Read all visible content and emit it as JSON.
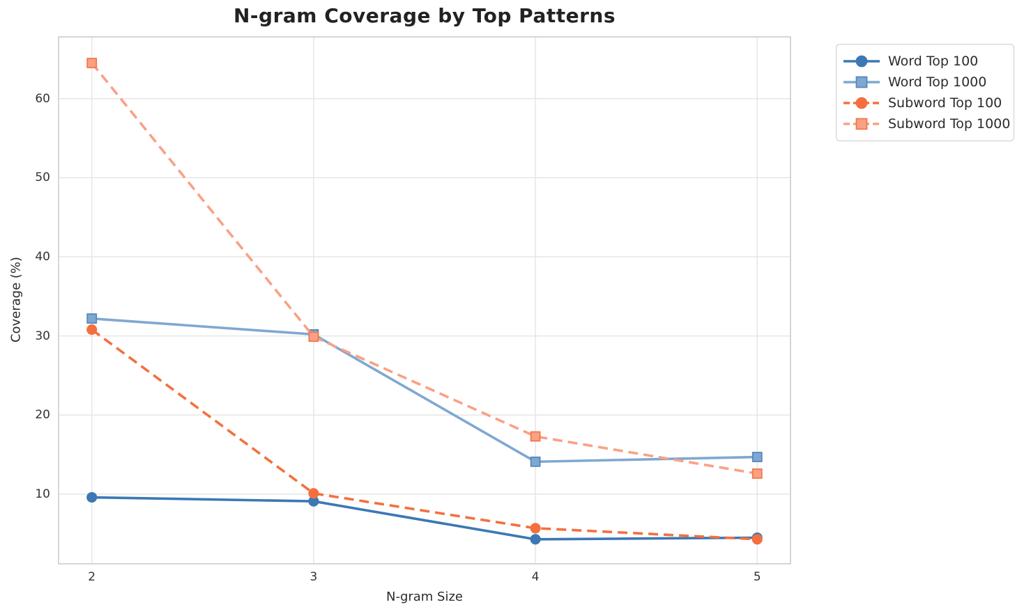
{
  "title": "N-gram Coverage by Top Patterns",
  "axes": {
    "xlabel": "N-gram Size",
    "ylabel": "Coverage (%)",
    "xticks": [
      "2",
      "3",
      "4",
      "5"
    ],
    "yticks": [
      "10",
      "20",
      "30",
      "40",
      "50",
      "60"
    ]
  },
  "colors": {
    "grid": "#e4e4e4",
    "spine": "#cccccc",
    "title_text": "#222222",
    "tick_text": "#333333"
  },
  "chart_data": {
    "type": "line",
    "title": "N-gram Coverage by Top Patterns",
    "xlabel": "N-gram Size",
    "ylabel": "Coverage (%)",
    "x": [
      2,
      3,
      4,
      5
    ],
    "xlim": [
      1.85,
      5.15
    ],
    "ylim": [
      1.2,
      67.8
    ],
    "grid": true,
    "legend_position": "outside upper right",
    "series": [
      {
        "name": "Word Top 100",
        "values": [
          9.6,
          9.1,
          4.3,
          4.5
        ],
        "color": "#3b78b4",
        "edge": "#3b78b4",
        "marker": "circle",
        "line": "solid"
      },
      {
        "name": "Word Top 1000",
        "values": [
          32.2,
          30.2,
          14.1,
          14.7
        ],
        "color": "#7fa8d0",
        "edge": "#5588bb",
        "marker": "square",
        "line": "solid"
      },
      {
        "name": "Subword Top 100",
        "values": [
          30.8,
          10.1,
          5.7,
          4.3
        ],
        "color": "#f3703e",
        "edge": "#f3703e",
        "marker": "circle",
        "line": "dashed"
      },
      {
        "name": "Subword Top 1000",
        "values": [
          64.5,
          29.9,
          17.3,
          12.6
        ],
        "color": "#f9a185",
        "edge": "#f3764a",
        "marker": "square",
        "line": "dashed"
      }
    ]
  }
}
